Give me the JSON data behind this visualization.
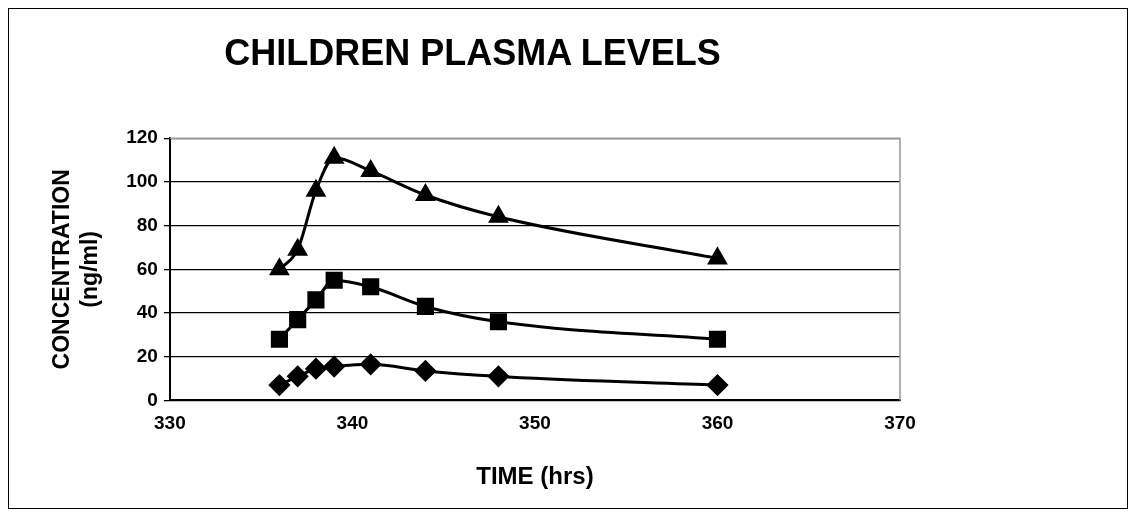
{
  "chart_data": {
    "type": "line",
    "title": "CHILDREN PLASMA LEVELS",
    "xlabel": "TIME (hrs)",
    "ylabel": "CONCENTRATION (ng/ml)",
    "x": [
      336,
      337,
      338,
      339,
      341,
      344,
      348,
      360
    ],
    "series": [
      {
        "color": "#000000",
        "marker": "diamond",
        "values": [
          7,
          11,
          14.5,
          15.5,
          16.5,
          13.5,
          11,
          7
        ]
      },
      {
        "color": "#000000",
        "marker": "square",
        "values": [
          28,
          37,
          46,
          55,
          52,
          43,
          36,
          28
        ]
      },
      {
        "color": "#000000",
        "marker": "triangle",
        "values": [
          60,
          69,
          96,
          111,
          105,
          94,
          84,
          65
        ]
      }
    ],
    "xlim": [
      330,
      370
    ],
    "xticks": [
      330,
      340,
      350,
      360,
      370
    ],
    "ylim": [
      0,
      120
    ],
    "yticks": [
      0,
      20,
      40,
      60,
      80,
      100,
      120
    ],
    "grid": "y",
    "legend": false,
    "line_style": "solid"
  }
}
